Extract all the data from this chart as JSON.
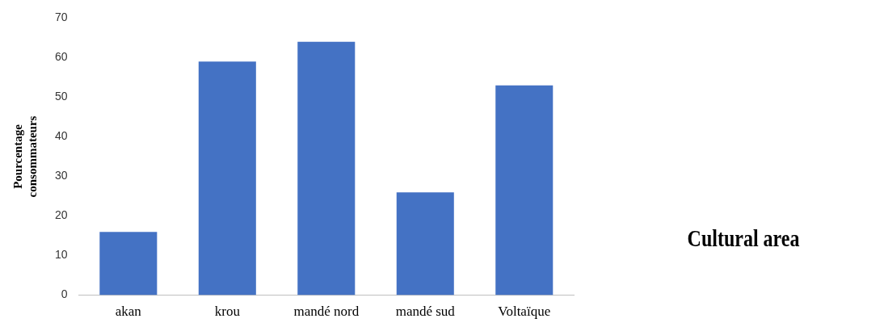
{
  "chart_data": {
    "type": "bar",
    "xlabel": "Cultural area",
    "ylabel": "Pourcentage consommateurs",
    "categories": [
      "akan",
      "krou",
      "mandé nord",
      "mandé sud",
      "Voltaïque"
    ],
    "values": [
      16,
      59,
      64,
      26,
      53
    ],
    "color": "#4472c4",
    "ylim": [
      0,
      70
    ],
    "yticks": [
      0,
      10,
      20,
      30,
      40,
      50,
      60,
      70
    ],
    "grid": false,
    "legend": false
  }
}
